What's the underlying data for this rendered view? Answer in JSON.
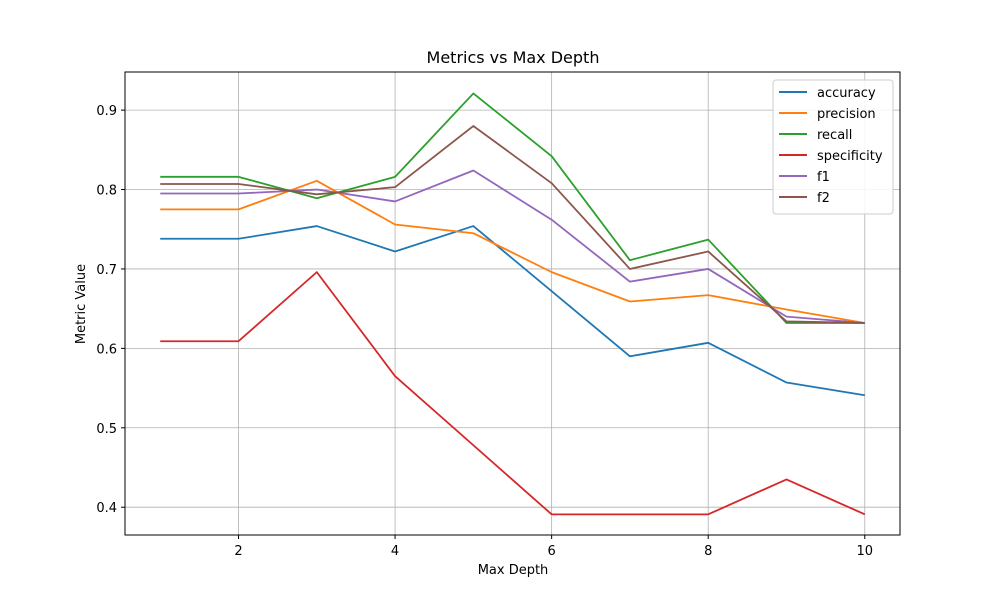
{
  "chart_data": {
    "type": "line",
    "title": "Metrics vs Max Depth",
    "xlabel": "Max Depth",
    "ylabel": "Metric Value",
    "x": [
      1,
      2,
      3,
      4,
      5,
      6,
      7,
      8,
      9,
      10
    ],
    "xlim": [
      0.55,
      10.45
    ],
    "ylim": [
      0.365,
      0.948
    ],
    "xticks": [
      2,
      4,
      6,
      8,
      10
    ],
    "yticks": [
      0.4,
      0.5,
      0.6,
      0.7,
      0.8,
      0.9
    ],
    "ytick_labels": [
      "0.4",
      "0.5",
      "0.6",
      "0.7",
      "0.8",
      "0.9"
    ],
    "grid": true,
    "legend_position": "top-right",
    "series": [
      {
        "name": "accuracy",
        "color": "#1f77b4",
        "values": [
          0.738,
          0.738,
          0.754,
          0.722,
          0.754,
          0.672,
          0.59,
          0.607,
          0.557,
          0.541
        ]
      },
      {
        "name": "precision",
        "color": "#ff7f0e",
        "values": [
          0.775,
          0.775,
          0.811,
          0.756,
          0.745,
          0.696,
          0.659,
          0.667,
          0.649,
          0.632
        ]
      },
      {
        "name": "recall",
        "color": "#2ca02c",
        "values": [
          0.816,
          0.816,
          0.789,
          0.816,
          0.921,
          0.842,
          0.711,
          0.737,
          0.632,
          0.632
        ]
      },
      {
        "name": "specificity",
        "color": "#d62728",
        "values": [
          0.609,
          0.609,
          0.696,
          0.565,
          0.478,
          0.391,
          0.391,
          0.391,
          0.435,
          0.391
        ]
      },
      {
        "name": "f1",
        "color": "#9467bd",
        "values": [
          0.795,
          0.795,
          0.8,
          0.785,
          0.824,
          0.762,
          0.684,
          0.7,
          0.64,
          0.632
        ]
      },
      {
        "name": "f2",
        "color": "#8c564b",
        "values": [
          0.807,
          0.807,
          0.794,
          0.803,
          0.88,
          0.808,
          0.7,
          0.722,
          0.634,
          0.632
        ]
      }
    ]
  }
}
